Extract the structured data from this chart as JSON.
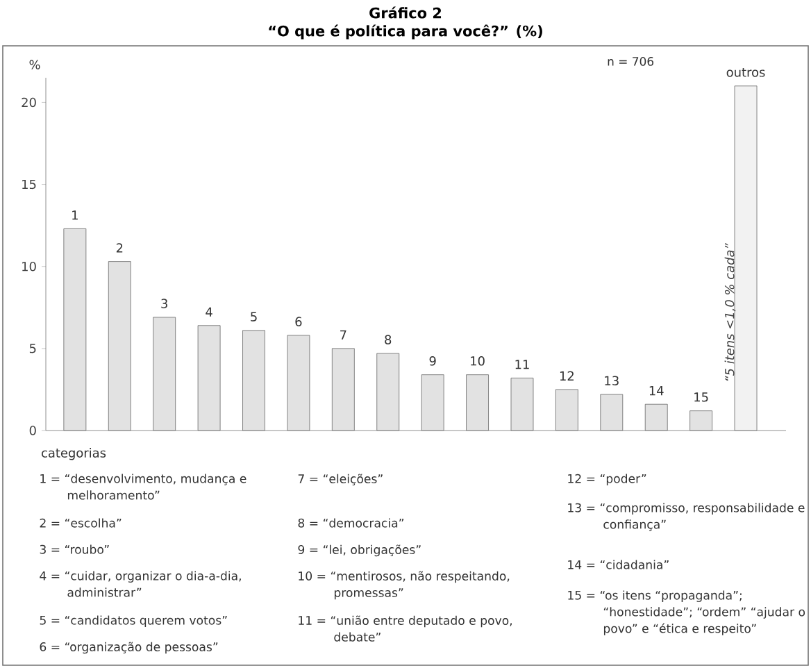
{
  "chart_data": {
    "type": "bar",
    "title": "Gráfico 2",
    "subtitle": "“O que é política para você?” (%)",
    "ylabel": "%",
    "categories": [
      "1",
      "2",
      "3",
      "4",
      "5",
      "6",
      "7",
      "8",
      "9",
      "10",
      "11",
      "12",
      "13",
      "14",
      "15",
      "outros"
    ],
    "values": [
      12.3,
      10.3,
      6.9,
      6.4,
      6.1,
      5.8,
      5.0,
      4.7,
      3.4,
      3.4,
      3.2,
      2.5,
      2.2,
      1.6,
      1.2,
      21.0
    ],
    "colors": [
      "#e2e2e2",
      "#e2e2e2",
      "#e2e2e2",
      "#e2e2e2",
      "#e2e2e2",
      "#e2e2e2",
      "#e2e2e2",
      "#e2e2e2",
      "#e2e2e2",
      "#e2e2e2",
      "#e2e2e2",
      "#e2e2e2",
      "#e2e2e2",
      "#e2e2e2",
      "#e2e2e2",
      "#f2f2f2"
    ],
    "ylim": [
      0,
      21.5
    ],
    "yticks": [
      0,
      5,
      10,
      15,
      20
    ],
    "annotations": [
      "n = 706",
      "“5 itens <1,0 % cada”",
      "categorias",
      "1 = “desenvolvimento, mudança e melhoramento”",
      "2 = “escolha”",
      "3 = “roubo”",
      "4 = “cuidar, organizar o dia-a-dia, administrar”",
      "5 = “candidatos querem votos”",
      "6 = “organização de pessoas”",
      "7 = “eleições”",
      "8 = “democracia”",
      "9 = “lei, obrigações”",
      "10 = “mentirosos, não respeitando, promessas”",
      "11 = “união entre deputado e povo, debate”",
      "12 = “poder”",
      "13 = “compromisso, responsabilidade e confiança”",
      "14 = “cidadania”",
      "15 = “os itens “propaganda”; “honestidade”; “ordem” “ajudar o povo” e “ética e respeito”"
    ]
  }
}
